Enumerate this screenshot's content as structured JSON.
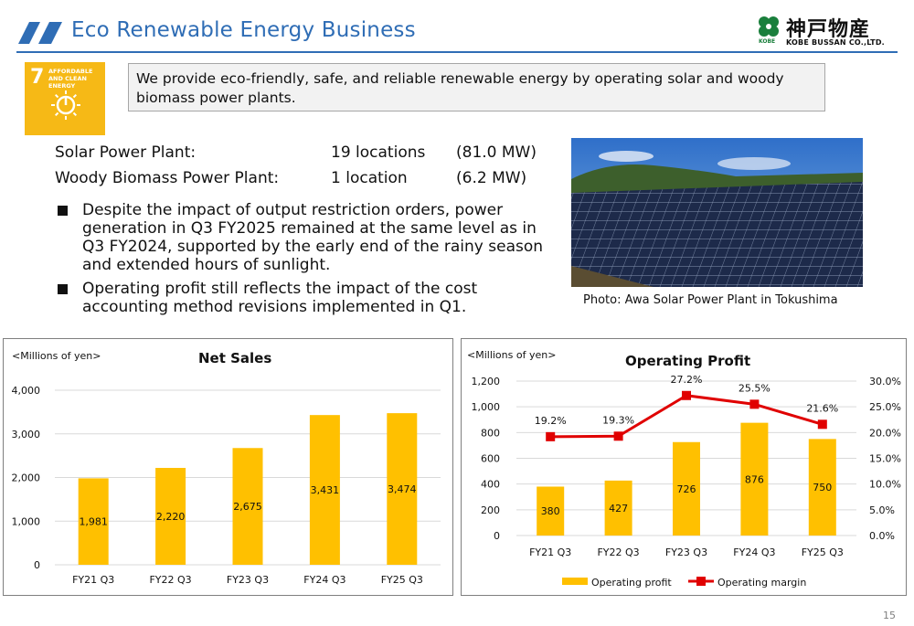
{
  "header": {
    "title": "Eco Renewable Energy Business",
    "company_name_jp": "神戸物産",
    "company_name_en": "KOBE BUSSAN CO.,LTD.",
    "company_small": "KOBE",
    "accent_color": "#2f6db5"
  },
  "sdg": {
    "number": "7",
    "label": "AFFORDABLE AND CLEAN ENERGY",
    "color": "#f6b916"
  },
  "intro": "We provide eco-friendly, safe, and reliable renewable energy by operating solar and woody biomass power plants.",
  "plants": [
    {
      "name": "Solar Power Plant:",
      "count": "19 locations",
      "capacity": "(81.0 MW)"
    },
    {
      "name": "Woody Biomass Power Plant:",
      "count": "1 location",
      "capacity": "(6.2 MW)"
    }
  ],
  "bullets": [
    "Despite the impact of output restriction orders, power generation in Q3 FY2025 remained at the same level as in Q3 FY2024, supported by the early end of the rainy season and extended hours of sunlight.",
    "Operating profit still reflects the impact of the cost accounting method revisions implemented in Q1."
  ],
  "photo": {
    "caption": "Photo: Awa Solar Power Plant in Tokushima"
  },
  "chart_data": [
    {
      "type": "bar",
      "title": "Net Sales",
      "unit_label": "<Millions of yen>",
      "categories": [
        "FY21 Q3",
        "FY22 Q3",
        "FY23 Q3",
        "FY24 Q3",
        "FY25 Q3"
      ],
      "values": [
        1981,
        2220,
        2675,
        3431,
        3474
      ],
      "value_labels": [
        "1,981",
        "2,220",
        "2,675",
        "3,431",
        "3,474"
      ],
      "ylim": [
        0,
        4000
      ],
      "yticks": [
        0,
        1000,
        2000,
        3000,
        4000
      ],
      "ytick_labels": [
        "0",
        "1,000",
        "2,000",
        "3,000",
        "4,000"
      ],
      "bar_color": "#ffc000",
      "grid": true
    },
    {
      "type": "bar",
      "title": "Operating Profit",
      "unit_label": "<Millions of yen>",
      "categories": [
        "FY21 Q3",
        "FY22 Q3",
        "FY23 Q3",
        "FY24 Q3",
        "FY25 Q3"
      ],
      "series": [
        {
          "name": "Operating profit",
          "type": "bar",
          "values": [
            380,
            427,
            726,
            876,
            750
          ],
          "value_labels": [
            "380",
            "427",
            "726",
            "876",
            "750"
          ],
          "color": "#ffc000"
        },
        {
          "name": "Operating margin",
          "type": "line",
          "values": [
            19.2,
            19.3,
            27.2,
            25.5,
            21.6
          ],
          "value_labels": [
            "19.2%",
            "19.3%",
            "27.2%",
            "25.5%",
            "21.6%"
          ],
          "color": "#e00000"
        }
      ],
      "ylim": [
        0,
        1200
      ],
      "yticks": [
        0,
        200,
        400,
        600,
        800,
        1000,
        1200
      ],
      "ytick_labels": [
        "0",
        "200",
        "400",
        "600",
        "800",
        "1,000",
        "1,200"
      ],
      "y2lim": [
        0,
        30
      ],
      "y2ticks": [
        0,
        5,
        10,
        15,
        20,
        25,
        30
      ],
      "y2tick_labels": [
        "0.0%",
        "5.0%",
        "10.0%",
        "15.0%",
        "20.0%",
        "25.0%",
        "30.0%"
      ],
      "legend_position": "bottom",
      "grid": true
    }
  ],
  "footer": {
    "page_number": "15"
  }
}
